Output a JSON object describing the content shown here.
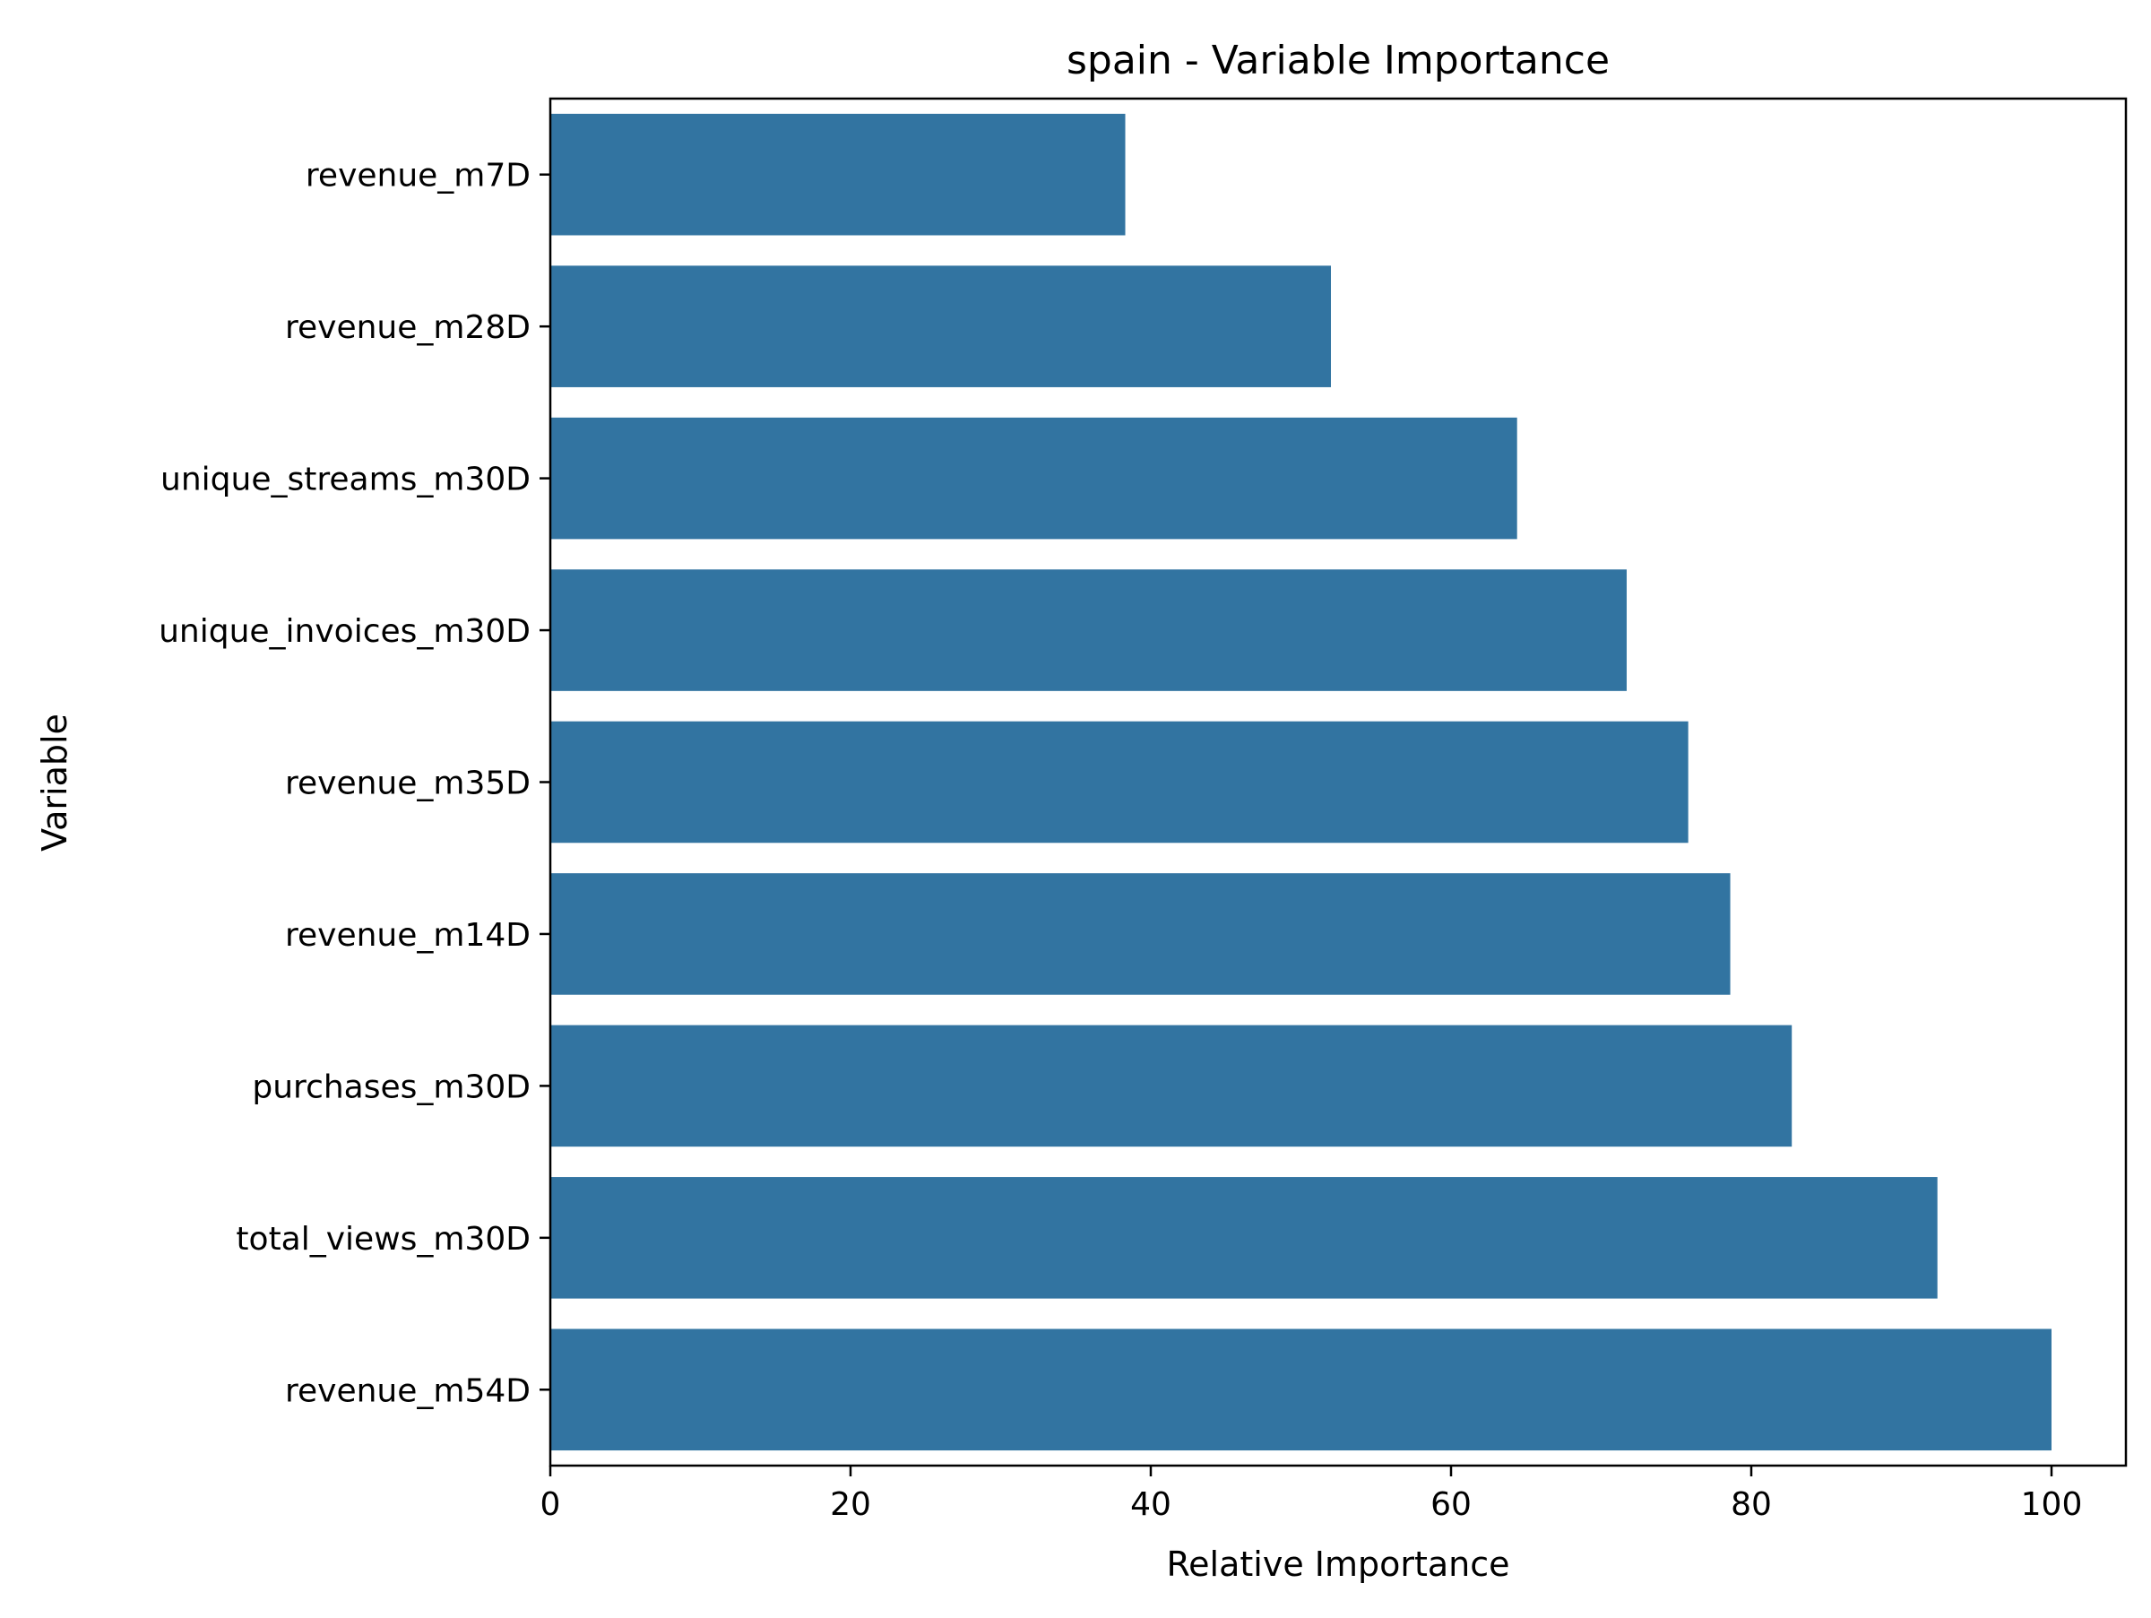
{
  "chart_data": {
    "type": "bar",
    "orientation": "horizontal",
    "title": "spain - Variable Importance",
    "xlabel": "Relative Importance",
    "ylabel": "Variable",
    "xlim": [
      0,
      105
    ],
    "xticks": [
      0,
      20,
      40,
      60,
      80,
      100
    ],
    "grid": false,
    "legend": "none",
    "bar_color": "#3274a1",
    "categories": [
      "revenue_m7D",
      "revenue_m28D",
      "unique_streams_m30D",
      "unique_invoices_m30D",
      "revenue_m35D",
      "revenue_m14D",
      "purchases_m30D",
      "total_views_m30D",
      "revenue_m54D"
    ],
    "values": [
      38.3,
      52.0,
      64.4,
      71.7,
      75.8,
      78.6,
      82.7,
      92.4,
      100.0
    ]
  }
}
